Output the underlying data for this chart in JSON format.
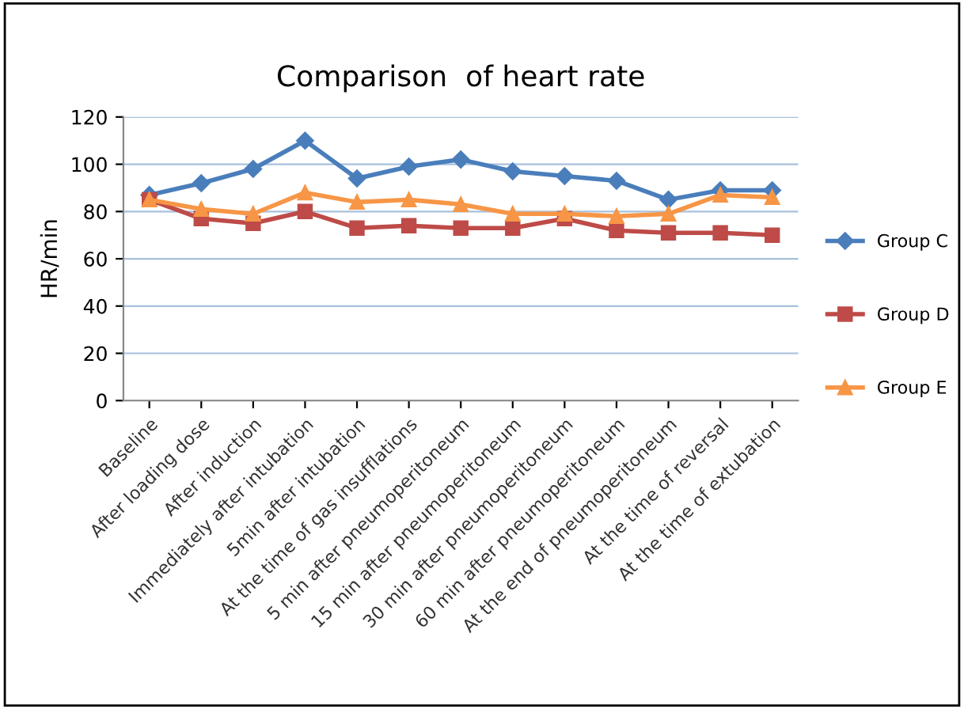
{
  "chart_data": {
    "type": "line",
    "title": "Comparison  of heart rate",
    "ylabel": "HR/min",
    "categories": [
      "Baseline",
      "After loading dose",
      "After induction",
      "Immediately after intubation",
      "5min after intubation",
      "At the time of gas insufflations",
      "5 min after pneumoperitoneum",
      "15 min after pneumoperitoneum",
      "30 min after pneumoperitoneum",
      "60 min after pneumoperitoneum",
      "At the end of pneumoperitoneum",
      "At the time of reversal",
      "At the time of extubation"
    ],
    "series": [
      {
        "name": "Group C",
        "color": "#4a7ebb",
        "marker": "diamond",
        "values": [
          87,
          92,
          98,
          110,
          94,
          99,
          102,
          97,
          95,
          93,
          85,
          89,
          89
        ]
      },
      {
        "name": "Group D",
        "color": "#be4b48",
        "marker": "square",
        "values": [
          85,
          77,
          75,
          80,
          73,
          74,
          73,
          73,
          77,
          72,
          71,
          71,
          70
        ]
      },
      {
        "name": "Group E",
        "color": "#f79646",
        "marker": "triangle",
        "values": [
          85,
          81,
          79,
          88,
          84,
          85,
          83,
          79,
          79,
          78,
          79,
          87,
          86
        ]
      }
    ],
    "ylim": [
      0,
      120
    ],
    "yticks": [
      0,
      20,
      40,
      60,
      80,
      100,
      120
    ],
    "grid": "y",
    "legend": "right"
  }
}
